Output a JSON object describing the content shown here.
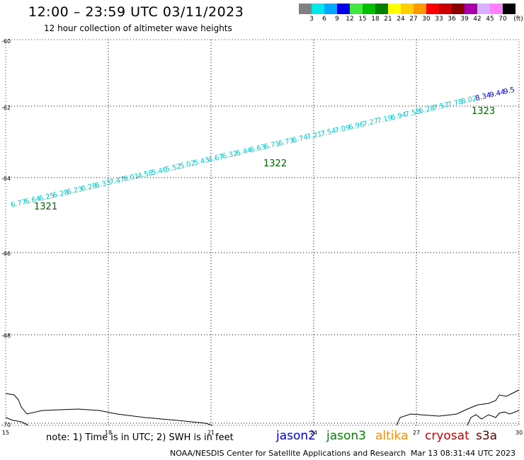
{
  "header": {
    "title": "12:00 – 23:59 UTC 03/11/2023",
    "subtitle": "12 hour collection of altimeter wave heights"
  },
  "color_scale": {
    "unit": "(ft)",
    "bins": [
      {
        "label": "3",
        "color": "#808080"
      },
      {
        "label": "6",
        "color": "#00e8e8"
      },
      {
        "label": "9",
        "color": "#00aaff"
      },
      {
        "label": "12",
        "color": "#0000ee"
      },
      {
        "label": "15",
        "color": "#40e840"
      },
      {
        "label": "18",
        "color": "#00c000"
      },
      {
        "label": "21",
        "color": "#008000"
      },
      {
        "label": "24",
        "color": "#ffff00"
      },
      {
        "label": "27",
        "color": "#ffd000"
      },
      {
        "label": "30",
        "color": "#ff9900"
      },
      {
        "label": "33",
        "color": "#ff0000"
      },
      {
        "label": "36",
        "color": "#cc0000"
      },
      {
        "label": "39",
        "color": "#880000"
      },
      {
        "label": "42",
        "color": "#aa00aa"
      },
      {
        "label": "45",
        "color": "#d8b0ff"
      },
      {
        "label": "70",
        "color": "#ff80ff"
      },
      {
        "label": "",
        "color": "#000000"
      }
    ]
  },
  "map": {
    "lat_labels": [
      "-60",
      "-62",
      "-64",
      "-66",
      "-68",
      "-70"
    ],
    "lon_labels": [
      "15",
      "18",
      "21",
      "24",
      "27",
      "30"
    ],
    "track_color": "#00cccc",
    "tail_color": "#0000cc",
    "pass_color": "#006400",
    "swh_values": [
      "6.77",
      "6.64",
      "6.25",
      "6.28",
      "6.23",
      "6.28",
      "6.33",
      "7.47",
      "8.01",
      "4.58",
      "5.46",
      "5.52",
      "5.02",
      "5.43",
      "4.67",
      "6.32",
      "6.44",
      "6.63",
      "6.71",
      "6.73",
      "6.74",
      "7.21",
      "7.54",
      "7.09",
      "6.96",
      "7.27",
      "7.19",
      "6.94",
      "7.58",
      "6.28",
      "7.57",
      "7.78",
      "8.02",
      "8.34",
      "9.44",
      "9.5"
    ],
    "passes": [
      "1321",
      "1322",
      "1323"
    ]
  },
  "legend": {
    "note": "note:  1) Time is in UTC;  2) SWH is in feet",
    "satellites": [
      {
        "name": "jason2",
        "color": "#0000cc"
      },
      {
        "name": "jason3",
        "color": "#008800"
      },
      {
        "name": "altika",
        "color": "#ff8c00"
      },
      {
        "name": "cryosat",
        "color": "#cc0000"
      },
      {
        "name": "s3a",
        "color": "#660000"
      }
    ]
  },
  "footer": {
    "credit": "NOAA/NESDIS Center for Satellite Applications and Research",
    "timestamp": "Mar 13 08:31:44 UTC 2023"
  }
}
